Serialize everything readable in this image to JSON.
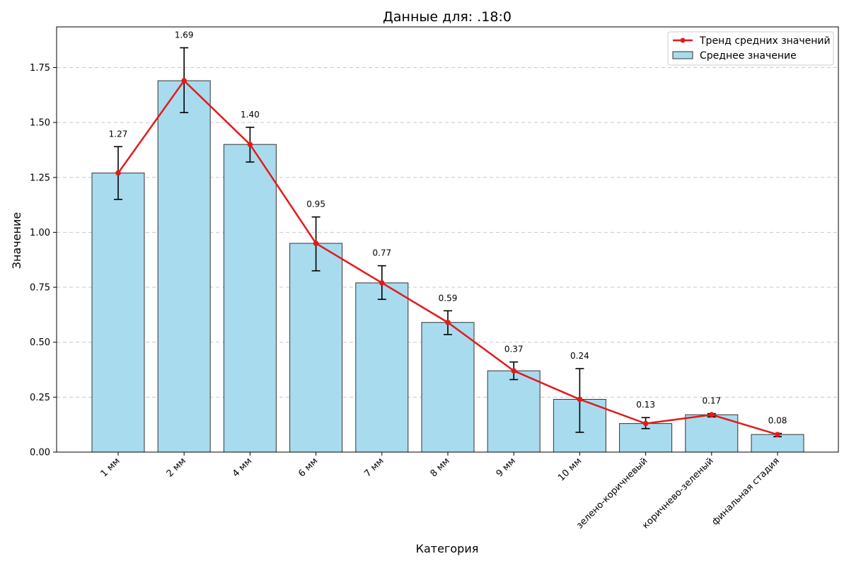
{
  "chart_data": {
    "type": "bar",
    "title": "Данные для: .18:0",
    "xlabel": "Категория",
    "ylabel": "Значение",
    "categories": [
      "1 мм",
      "2 мм",
      "4 мм",
      "6 мм",
      "7 мм",
      "8 мм",
      "9 мм",
      "10 мм",
      "зелено-коричневый",
      "коричнево-зеленый",
      "финальная стадия"
    ],
    "series": [
      {
        "name": "Среднее значение",
        "kind": "bar",
        "values": [
          1.27,
          1.69,
          1.4,
          0.95,
          0.77,
          0.59,
          0.37,
          0.24,
          0.13,
          0.17,
          0.08
        ],
        "error_low": [
          1.15,
          1.545,
          1.32,
          0.825,
          0.695,
          0.535,
          0.33,
          0.09,
          0.107,
          0.16,
          0.07
        ],
        "error_high": [
          1.39,
          1.84,
          1.478,
          1.07,
          0.848,
          0.643,
          0.41,
          0.38,
          0.157,
          0.175,
          0.085
        ],
        "color": "#a8dbee",
        "edge_color": "#333333"
      },
      {
        "name": "Тренд средних значений",
        "kind": "line",
        "values": [
          1.27,
          1.69,
          1.4,
          0.95,
          0.77,
          0.59,
          0.37,
          0.24,
          0.13,
          0.17,
          0.08
        ],
        "color": "#e31a1c"
      }
    ],
    "data_labels": [
      "1.27",
      "1.69",
      "1.40",
      "0.95",
      "0.77",
      "0.59",
      "0.37",
      "0.24",
      "0.13",
      "0.17",
      "0.08"
    ],
    "yticks": [
      "0.00",
      "0.25",
      "0.50",
      "0.75",
      "1.00",
      "1.25",
      "1.50",
      "1.75"
    ],
    "ytick_values": [
      0,
      0.25,
      0.5,
      0.75,
      1.0,
      1.25,
      1.5,
      1.75
    ],
    "ylim": [
      0,
      1.935
    ],
    "grid": "y-dashed",
    "legend_position": "top-right"
  }
}
